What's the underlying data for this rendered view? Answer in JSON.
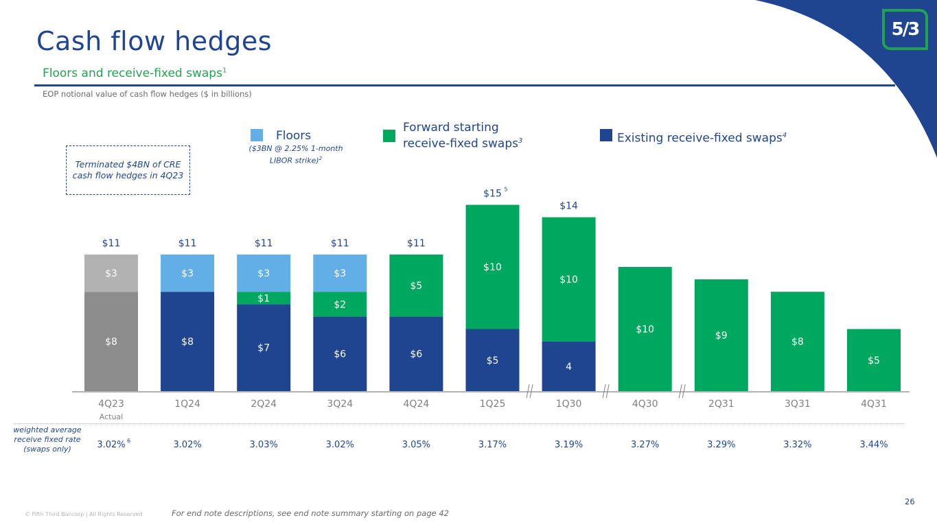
{
  "header": {
    "title": "Cash flow hedges",
    "subtitle": "Floors and receive-fixed swaps",
    "subtitle_footnote": "1",
    "caption": "EOP notional value of cash flow hedges ($ in billions)",
    "logo_text": "5/3"
  },
  "callout": {
    "text": "Terminated $4BN of CRE cash flow hedges in 4Q23"
  },
  "legend": {
    "floors": {
      "label": "Floors",
      "note": "($3BN @ 2.25% 1-month LIBOR strike)",
      "note_footnote": "2",
      "color": "#62afe8"
    },
    "forward": {
      "label": "Forward starting receive-fixed swaps",
      "footnote": "3",
      "color": "#00a85f"
    },
    "existing": {
      "label": "Existing receive-fixed swaps",
      "footnote": "4",
      "color": "#1f4591"
    }
  },
  "chart_data": {
    "type": "bar",
    "stacked": true,
    "title": "EOP notional value of cash flow hedges ($ in billions)",
    "categories": [
      "4Q23",
      "1Q24",
      "2Q24",
      "3Q24",
      "4Q24",
      "1Q25",
      "1Q30",
      "4Q30",
      "2Q31",
      "3Q31",
      "4Q31"
    ],
    "category_sublabels": [
      "Actual",
      "",
      "",
      "",
      "",
      "",
      "",
      "",
      "",
      "",
      ""
    ],
    "axis_breaks_after": [
      "1Q25",
      "1Q30",
      "4Q30"
    ],
    "series": [
      {
        "name": "Existing receive-fixed swaps",
        "color": "#1f4591",
        "values": [
          8,
          8,
          7,
          6,
          6,
          5,
          4,
          0,
          0,
          0,
          0
        ],
        "labels": [
          "$8",
          "$8",
          "$7",
          "$6",
          "$6",
          "$5",
          "4",
          "",
          "",
          "",
          ""
        ]
      },
      {
        "name": "Forward starting receive-fixed swaps",
        "color": "#00a85f",
        "values": [
          0,
          0,
          1,
          2,
          5,
          10,
          10,
          10,
          9,
          8,
          5
        ],
        "labels": [
          "",
          "",
          "$1",
          "$2",
          "$5",
          "$10",
          "$10",
          "$10",
          "$9",
          "$8",
          "$5"
        ]
      },
      {
        "name": "Floors",
        "color": "#62afe8",
        "values": [
          3,
          3,
          3,
          3,
          0,
          0,
          0,
          0,
          0,
          0,
          0
        ],
        "labels": [
          "$3",
          "$3",
          "$3",
          "$3",
          "",
          "",
          "",
          "",
          "",
          "",
          ""
        ]
      }
    ],
    "actual_colors": {
      "existing": "#8c8c8c",
      "floors": "#b2b2b2"
    },
    "totals": [
      "$11",
      "$11",
      "$11",
      "$11",
      "$11",
      "$15",
      "$14",
      "",
      "",
      "",
      ""
    ],
    "total_footnotes": [
      "",
      "",
      "",
      "",
      "",
      "5",
      "",
      "",
      "",
      "",
      ""
    ],
    "ylim": [
      0,
      16
    ],
    "xlabel": "",
    "ylabel": "",
    "grid": false
  },
  "rates": {
    "label": "weighted average receive fixed rate (swaps only)",
    "values": [
      "3.02%",
      "3.02%",
      "3.03%",
      "3.02%",
      "3.05%",
      "3.17%",
      "3.19%",
      "3.27%",
      "3.29%",
      "3.32%",
      "3.44%"
    ],
    "first_footnote": "6"
  },
  "footer": {
    "copyright": "© Fifth Third Bancorp | All Rights Reserved",
    "note": "For end note descriptions, see end note summary starting on page 42",
    "page_number": "26"
  }
}
